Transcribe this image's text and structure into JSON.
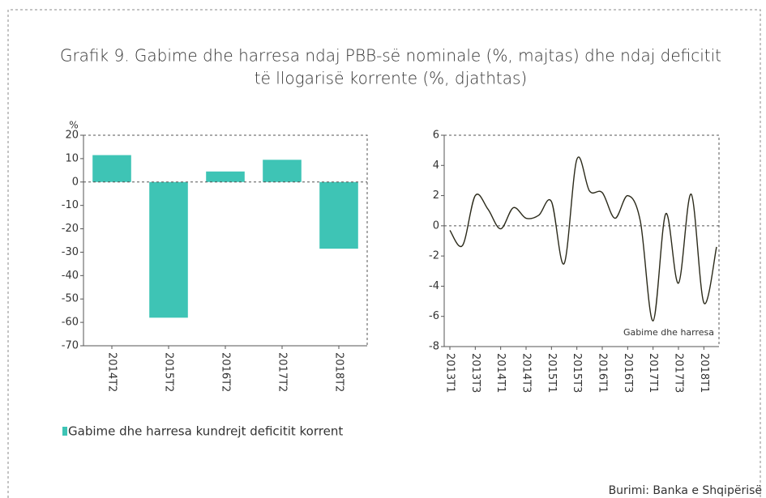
{
  "title": "Grafik 9. Gabime dhe harresa ndaj PBB-së nominale (%, majtas) dhe ndaj deficitit",
  "title_line2": "të llogarisë korrente (%, djathtas)",
  "source": "Burimi: Banka e Shqipërisë",
  "chart_data": [
    {
      "type": "bar",
      "y_label": "%",
      "categories": [
        "2014T2",
        "2015T2",
        "2016T2",
        "2017T2",
        "2018T2"
      ],
      "series": [
        {
          "name": "Gabime dhe harresa kundrejt deficitit korrent",
          "color": "#3ec4b5",
          "values": [
            11.5,
            -58,
            4.5,
            9.5,
            -28.5
          ]
        }
      ],
      "ylim": [
        -70,
        20
      ],
      "yticks": [
        -70,
        -60,
        -50,
        -40,
        -30,
        -20,
        -10,
        0,
        10,
        20
      ]
    },
    {
      "type": "line",
      "categories": [
        "2013T1",
        null,
        "2013T3",
        null,
        "2014T1",
        null,
        "2014T3",
        null,
        "2015T1",
        null,
        "2015T3",
        null,
        "2016T1",
        null,
        "2016T3",
        null,
        "2017T1",
        null,
        "2017T3",
        null,
        "2018T1",
        null
      ],
      "series": [
        {
          "name": "Gabime dhe harresa",
          "color": "#2b2a1a",
          "values": [
            -0.3,
            -1.3,
            2.0,
            1.1,
            -0.2,
            1.2,
            0.5,
            0.7,
            1.6,
            -2.5,
            4.4,
            2.3,
            2.2,
            0.5,
            2.0,
            0.3,
            -6.3,
            0.8,
            -3.8,
            2.1,
            -5.1,
            -1.4
          ]
        }
      ],
      "ylim": [
        -8,
        6
      ],
      "yticks": [
        -8,
        -6,
        -4,
        -2,
        0,
        2,
        4,
        6
      ]
    }
  ]
}
